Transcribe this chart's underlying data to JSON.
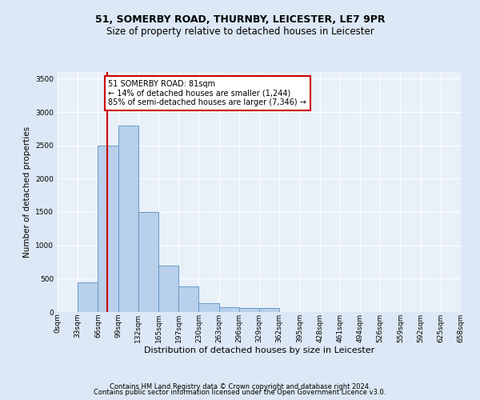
{
  "title1": "51, SOMERBY ROAD, THURNBY, LEICESTER, LE7 9PR",
  "title2": "Size of property relative to detached houses in Leicester",
  "xlabel": "Distribution of detached houses by size in Leicester",
  "ylabel": "Number of detached properties",
  "footnote1": "Contains HM Land Registry data © Crown copyright and database right 2024.",
  "footnote2": "Contains public sector information licensed under the Open Government Licence v3.0.",
  "annotation_line1": "51 SOMERBY ROAD: 81sqm",
  "annotation_line2": "← 14% of detached houses are smaller (1,244)",
  "annotation_line3": "85% of semi-detached houses are larger (7,346) →",
  "property_size": 81,
  "bins_step": 33,
  "bar_values": [
    5,
    450,
    2500,
    2800,
    1500,
    700,
    380,
    130,
    70,
    60,
    60,
    0,
    0,
    0,
    0,
    0,
    0,
    0,
    0,
    0
  ],
  "bar_color": "#b8d0ea",
  "bar_edgecolor": "#6699cc",
  "redline_color": "#cc0000",
  "annotation_box_edgecolor": "#cc0000",
  "background_color": "#dce8f5",
  "plot_bg_color": "#e8f0f8",
  "grid_color": "#ffffff",
  "ylim": [
    0,
    3600
  ],
  "yticks": [
    0,
    500,
    1000,
    1500,
    2000,
    2500,
    3000,
    3500
  ],
  "tick_labels": [
    "0sqm",
    "33sqm",
    "66sqm",
    "99sqm",
    "132sqm",
    "165sqm",
    "197sqm",
    "230sqm",
    "263sqm",
    "296sqm",
    "329sqm",
    "362sqm",
    "395sqm",
    "428sqm",
    "461sqm",
    "494sqm",
    "526sqm",
    "559sqm",
    "592sqm",
    "625sqm",
    "658sqm"
  ],
  "title1_fontsize": 9,
  "title2_fontsize": 8.5,
  "xlabel_fontsize": 8,
  "ylabel_fontsize": 7.5,
  "tick_fontsize": 6.5,
  "footnote_fontsize": 6,
  "annotation_fontsize": 7
}
